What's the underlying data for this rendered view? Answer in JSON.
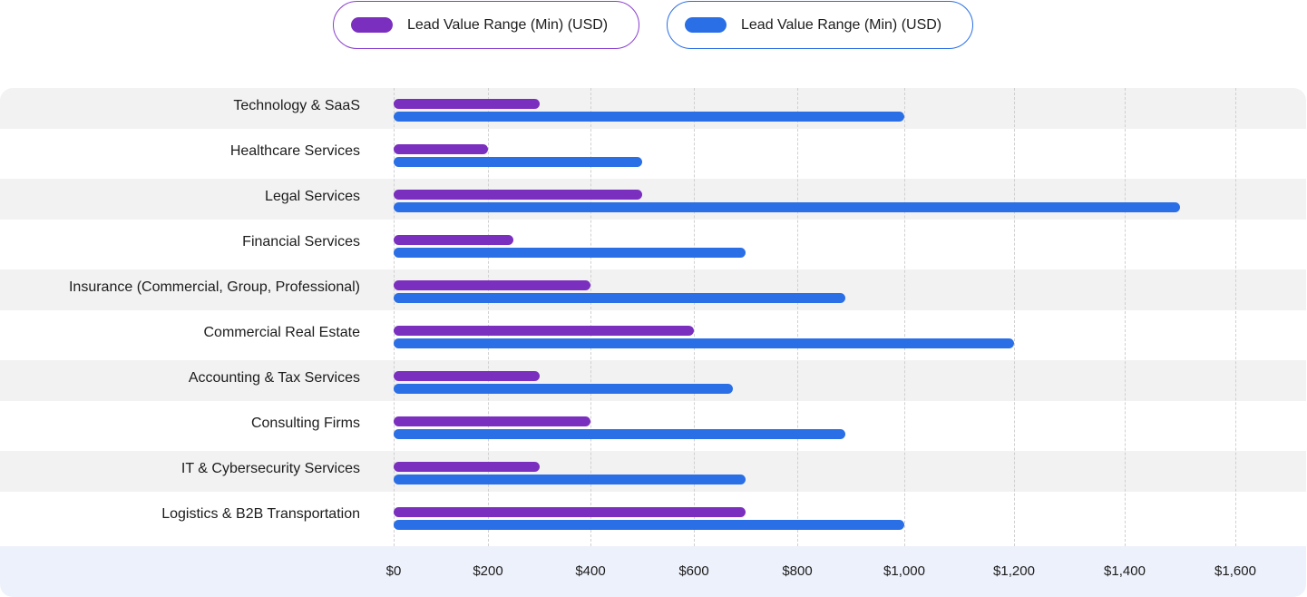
{
  "chart_data": {
    "type": "bar",
    "orientation": "horizontal",
    "categories": [
      "Technology & SaaS",
      "Healthcare Services",
      "Legal Services",
      "Financial Services",
      "Insurance (Commercial, Group, Professional)",
      "Commercial Real Estate",
      "Accounting & Tax Services",
      "Consulting Firms",
      "IT & Cybersecurity Services",
      "Logistics & B2B Transportation"
    ],
    "series": [
      {
        "name": "Lead Value Range (Min) (USD)",
        "color": "#7b2fbe",
        "values": [
          300,
          200,
          500,
          250,
          400,
          600,
          300,
          400,
          300,
          700
        ]
      },
      {
        "name": "Lead Value Range (Min) (USD)",
        "color": "#2a6fe6",
        "values": [
          1000,
          500,
          1500,
          700,
          890,
          1200,
          675,
          890,
          700,
          1000
        ]
      }
    ],
    "xticks": [
      0,
      200,
      400,
      600,
      800,
      1000,
      1200,
      1400,
      1600
    ],
    "xtick_labels": [
      "$0",
      "$200",
      "$400",
      "$600",
      "$800",
      "$1,000",
      "$1,200",
      "$1,400",
      "$1,600"
    ],
    "xlim": [
      0,
      1600
    ],
    "grid": true,
    "legend_position": "top-center",
    "title": "",
    "xlabel": "",
    "ylabel": ""
  }
}
